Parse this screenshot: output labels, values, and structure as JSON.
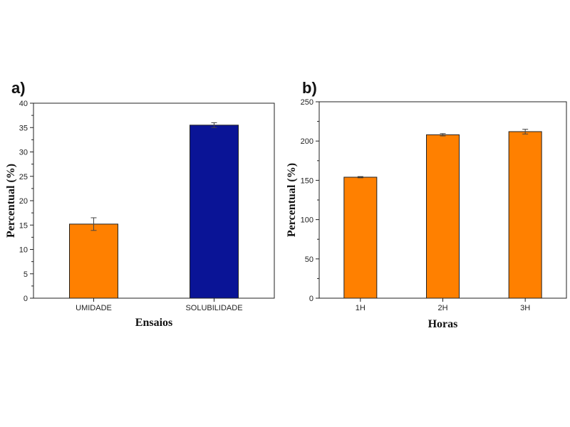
{
  "chart_data": [
    {
      "panel": "a)",
      "type": "bar",
      "title": "",
      "categories": [
        "UMIDADE",
        "SOLUBILIDADE"
      ],
      "values": [
        15.2,
        35.5
      ],
      "errors": [
        1.3,
        0.5
      ],
      "colors": [
        "#FF8000",
        "#0A1496"
      ],
      "xlabel": "Ensaios",
      "ylabel": "Percentual (%)",
      "ylim": [
        0,
        40
      ],
      "yticks": [
        0,
        5,
        10,
        15,
        20,
        25,
        30,
        35,
        40
      ],
      "grid": false
    },
    {
      "panel": "b)",
      "type": "bar",
      "title": "",
      "categories": [
        "1H",
        "2H",
        "3H"
      ],
      "values": [
        154,
        208,
        212
      ],
      "errors": [
        0.8,
        1.5,
        3
      ],
      "colors": [
        "#FF8000",
        "#FF8000",
        "#FF8000"
      ],
      "xlabel": "Horas",
      "ylabel": "Percentual (%)",
      "ylim": [
        0,
        250
      ],
      "yticks": [
        0,
        50,
        100,
        150,
        200,
        250
      ],
      "grid": false
    }
  ]
}
